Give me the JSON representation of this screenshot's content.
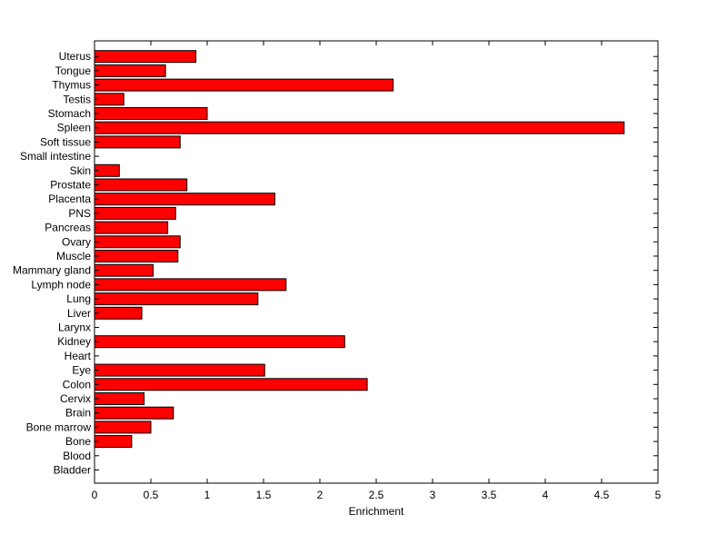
{
  "chart_data": {
    "type": "bar",
    "orientation": "horizontal",
    "title": "",
    "xlabel": "Enrichment",
    "ylabel": "",
    "xlim": [
      0,
      5
    ],
    "xticks": [
      0,
      0.5,
      1,
      1.5,
      2,
      2.5,
      3,
      3.5,
      4,
      4.5,
      5
    ],
    "grid": false,
    "bar_color": "#ff0000",
    "categories": [
      "Bladder",
      "Blood",
      "Bone",
      "Bone marrow",
      "Brain",
      "Cervix",
      "Colon",
      "Eye",
      "Heart",
      "Kidney",
      "Larynx",
      "Liver",
      "Lung",
      "Lymph node",
      "Mammary gland",
      "Muscle",
      "Ovary",
      "Pancreas",
      "PNS",
      "Placenta",
      "Prostate",
      "Skin",
      "Small intestine",
      "Soft tissue",
      "Spleen",
      "Stomach",
      "Testis",
      "Thymus",
      "Tongue",
      "Uterus"
    ],
    "values": [
      0,
      0,
      0.33,
      0.5,
      0.7,
      0.44,
      2.42,
      1.51,
      0,
      2.22,
      0,
      0.42,
      1.45,
      1.7,
      0.52,
      0.74,
      0.76,
      0.65,
      0.72,
      1.6,
      0.82,
      0.22,
      0,
      0.76,
      4.7,
      1.0,
      0.26,
      2.65,
      0.63,
      0.9
    ]
  }
}
